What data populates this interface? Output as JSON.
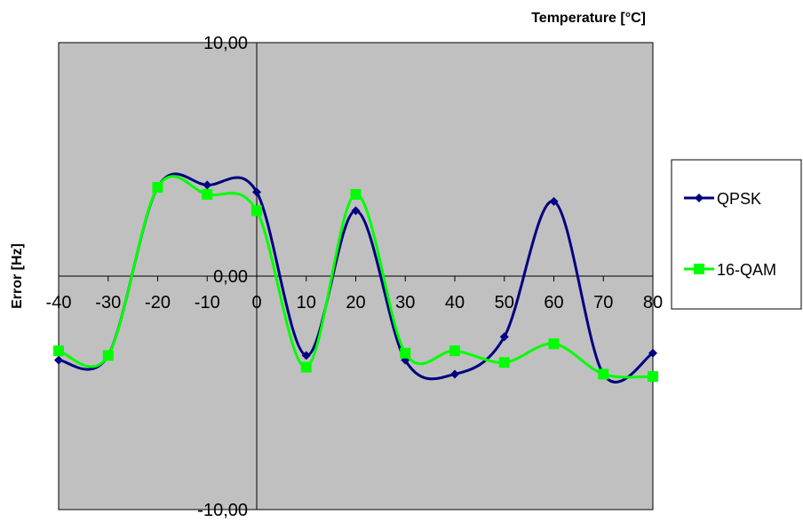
{
  "chart_data": {
    "type": "line",
    "xlabel": "Temperature  [°C]",
    "ylabel": "Error [Hz]",
    "x": [
      -40,
      -30,
      -20,
      -10,
      0,
      10,
      20,
      30,
      40,
      50,
      60,
      70,
      80
    ],
    "x_tick_labels": [
      "-40",
      "-30",
      "-20",
      "-10",
      "0",
      "10",
      "20",
      "30",
      "40",
      "50",
      "60",
      "70",
      "80"
    ],
    "xlim": [
      -40,
      80
    ],
    "ylim": [
      -10,
      10
    ],
    "y_tick_values": [
      10,
      0,
      -10
    ],
    "y_tick_labels": [
      "10,00",
      "0,00",
      "-10,00"
    ],
    "grid": false,
    "smoothed": true,
    "plot_background": "#c0c0c0",
    "legend_position": "right",
    "series": [
      {
        "name": "QPSK",
        "color": "#000080",
        "marker": "diamond",
        "values": [
          -3.6,
          -3.4,
          3.8,
          3.9,
          3.6,
          -3.4,
          2.8,
          -3.6,
          -4.2,
          -2.6,
          3.2,
          -4.2,
          -3.3
        ]
      },
      {
        "name": "16-QAM",
        "color": "#00ff00",
        "marker": "square",
        "values": [
          -3.2,
          -3.4,
          3.8,
          3.5,
          2.8,
          -3.9,
          3.5,
          -3.3,
          -3.2,
          -3.7,
          -2.9,
          -4.2,
          -4.3
        ]
      }
    ]
  }
}
